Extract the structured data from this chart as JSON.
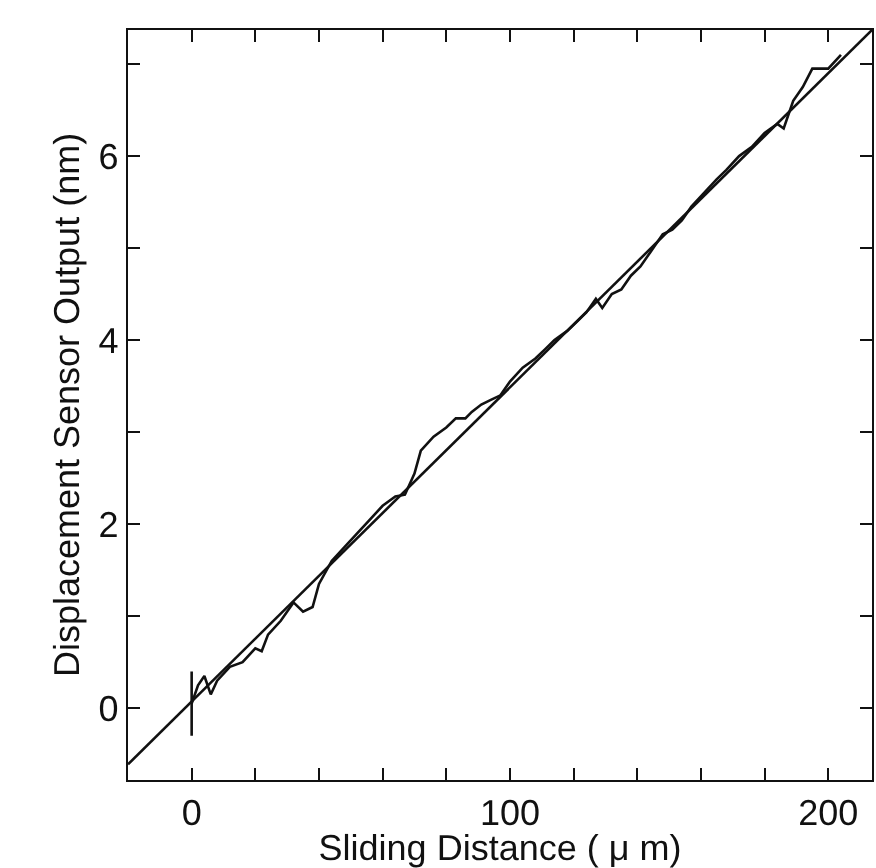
{
  "chart_data": {
    "type": "line",
    "xlabel": "Sliding Distance ( μ m)",
    "ylabel": "Displacement Sensor Output (nm)",
    "xlim": [
      -20,
      213.75
    ],
    "ylim": [
      -0.78,
      7.37
    ],
    "xticks": [
      {
        "value": -20,
        "label": null
      },
      0,
      {
        "value": 20,
        "label": null
      },
      {
        "value": 40,
        "label": null
      },
      {
        "value": 60,
        "label": null
      },
      {
        "value": 80,
        "label": null
      },
      100,
      {
        "value": 120,
        "label": null
      },
      {
        "value": 140,
        "label": null
      },
      {
        "value": 160,
        "label": null
      },
      {
        "value": 180,
        "label": null
      },
      200
    ],
    "yticks": [
      0,
      {
        "value": 1,
        "label": null
      },
      2,
      {
        "value": 3,
        "label": null
      },
      4,
      {
        "value": 5,
        "label": null
      },
      6,
      {
        "value": 7,
        "label": null
      }
    ],
    "marker": "none",
    "line_style": "solid",
    "series": [
      {
        "color": "#111111",
        "x": [
          0,
          0,
          0,
          2,
          4,
          6,
          8,
          12,
          16,
          20,
          22,
          24,
          28,
          32,
          35,
          38,
          40,
          44,
          48,
          52,
          56,
          60,
          64,
          67,
          70,
          72,
          76,
          80,
          83,
          86,
          88,
          91,
          94,
          97,
          100,
          104,
          108,
          111,
          114,
          118,
          121,
          124,
          127,
          129,
          132,
          135,
          138,
          141,
          144,
          148,
          151,
          154,
          157,
          161,
          165,
          168,
          172,
          176,
          180,
          184,
          186,
          189,
          192,
          195,
          200,
          204
        ],
        "values": [
          -0.3,
          0.4,
          0.05,
          0.25,
          0.35,
          0.15,
          0.3,
          0.45,
          0.5,
          0.65,
          0.62,
          0.8,
          0.95,
          1.15,
          1.05,
          1.1,
          1.35,
          1.6,
          1.75,
          1.9,
          2.05,
          2.2,
          2.3,
          2.32,
          2.55,
          2.8,
          2.95,
          3.05,
          3.15,
          3.15,
          3.22,
          3.3,
          3.35,
          3.4,
          3.55,
          3.7,
          3.8,
          3.9,
          4.0,
          4.1,
          4.2,
          4.3,
          4.45,
          4.35,
          4.5,
          4.55,
          4.7,
          4.8,
          4.95,
          5.15,
          5.2,
          5.3,
          5.45,
          5.6,
          5.75,
          5.85,
          6.0,
          6.1,
          6.25,
          6.35,
          6.3,
          6.6,
          6.75,
          6.95,
          6.95,
          7.1
        ]
      },
      {
        "color": "#111111",
        "x": [
          -20,
          213.75
        ],
        "values": [
          -0.61,
          7.37
        ]
      }
    ]
  }
}
